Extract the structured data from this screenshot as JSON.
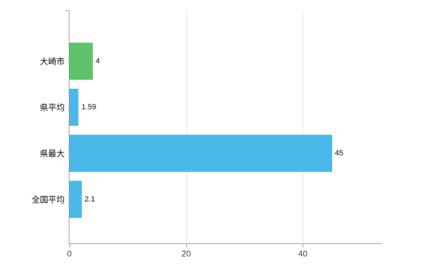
{
  "chart_data": {
    "type": "bar",
    "orientation": "horizontal",
    "title": "",
    "xlabel": "",
    "ylabel": "",
    "categories": [
      "大崎市",
      "県平均",
      "県最大",
      "全国平均"
    ],
    "values": [
      4,
      1.59,
      45,
      2.1
    ],
    "value_labels": [
      "4",
      "1.59",
      "45",
      "2.1"
    ],
    "bar_colors": [
      "#5ec26a",
      "#4ab9e9",
      "#4ab9e9",
      "#4ab9e9"
    ],
    "x_ticks": [
      0,
      20,
      40
    ],
    "x_tick_labels": [
      "0",
      "20",
      "40"
    ],
    "xlim": [
      0,
      53.5
    ],
    "grid": true,
    "legend": "none",
    "background": "#ffffff"
  },
  "colors": {
    "axis": "#999999",
    "gridline": "#e4e4e4",
    "text": "#000000",
    "tick_text": "#333333"
  }
}
